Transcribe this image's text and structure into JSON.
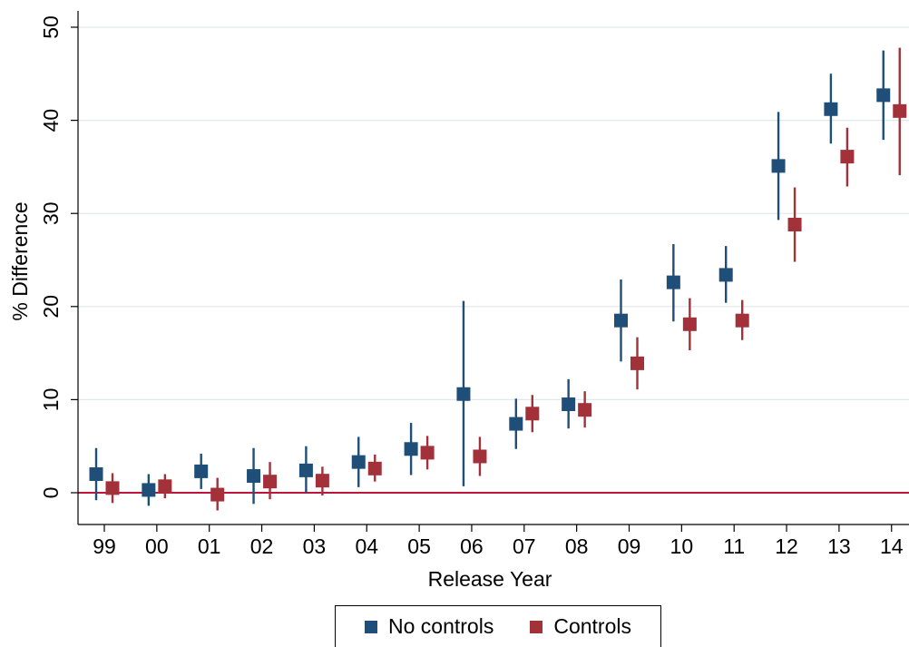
{
  "chart_data": {
    "type": "scatter",
    "xlabel": "Release Year",
    "ylabel": "% Difference",
    "ylim": [
      -3,
      52
    ],
    "yticks": [
      0,
      10,
      20,
      30,
      40,
      50
    ],
    "categories": [
      "99",
      "00",
      "01",
      "02",
      "03",
      "04",
      "05",
      "06",
      "07",
      "08",
      "09",
      "10",
      "11",
      "12",
      "13",
      "14"
    ],
    "reference_line": 0,
    "grid": true,
    "legend_position": "bottom",
    "series": [
      {
        "name": "No controls",
        "color": "#1f4e79",
        "values": [
          2.0,
          0.3,
          2.3,
          1.8,
          2.4,
          3.3,
          4.7,
          10.6,
          7.4,
          9.5,
          18.5,
          22.6,
          23.4,
          35.1,
          41.2,
          42.7
        ],
        "lower": [
          -0.8,
          -1.4,
          0.4,
          -1.2,
          0.0,
          0.6,
          1.9,
          0.7,
          4.7,
          6.9,
          14.1,
          18.4,
          20.4,
          29.3,
          37.5,
          37.9
        ],
        "upper": [
          4.8,
          2.0,
          4.2,
          4.8,
          5.0,
          6.0,
          7.5,
          20.6,
          10.1,
          12.2,
          22.9,
          26.7,
          26.5,
          40.9,
          45.0,
          47.5
        ]
      },
      {
        "name": "Controls",
        "color": "#a3313a",
        "values": [
          0.5,
          0.7,
          -0.2,
          1.2,
          1.3,
          2.6,
          4.3,
          3.9,
          8.5,
          8.9,
          13.9,
          18.1,
          18.5,
          28.8,
          36.1,
          41.0
        ],
        "lower": [
          -1.1,
          -0.6,
          -1.9,
          -0.7,
          -0.3,
          1.2,
          2.5,
          1.8,
          6.5,
          7.0,
          11.1,
          15.3,
          16.4,
          24.8,
          32.9,
          34.1
        ],
        "upper": [
          2.1,
          2.0,
          1.6,
          3.3,
          2.8,
          4.1,
          6.1,
          6.0,
          10.5,
          10.9,
          16.7,
          20.9,
          20.7,
          32.8,
          39.2,
          47.8
        ]
      }
    ]
  }
}
